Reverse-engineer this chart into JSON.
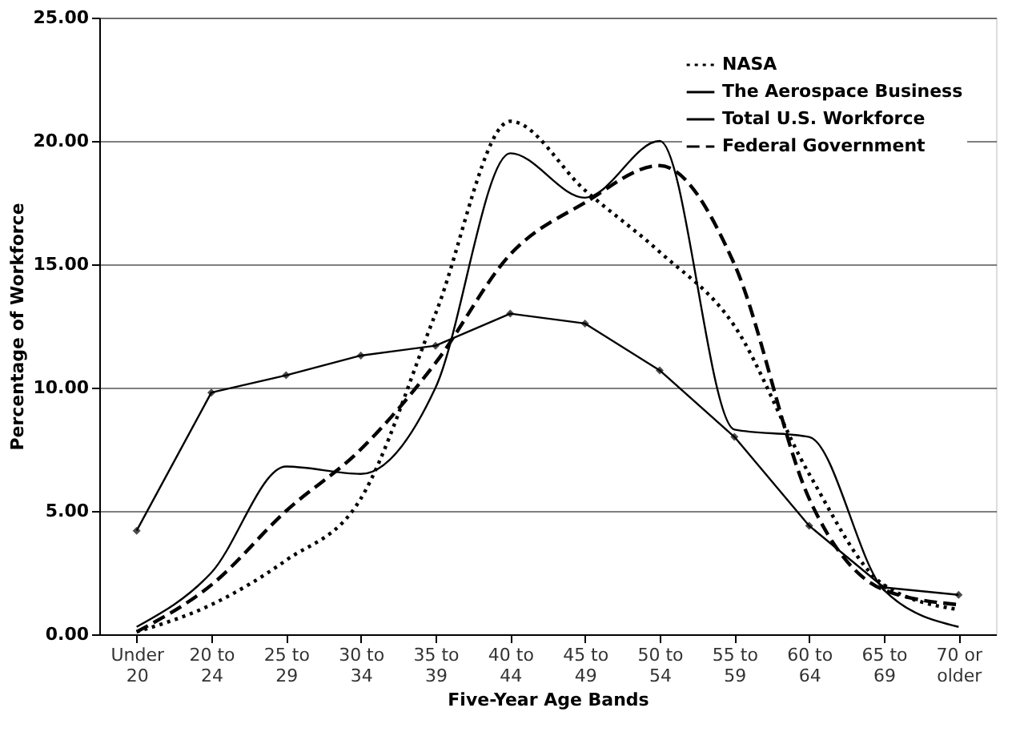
{
  "chart_data": {
    "type": "line",
    "xlabel": "Five-Year Age Bands",
    "ylabel": "Percentage of Workforce",
    "categories": [
      "Under 20",
      "20 to 24",
      "25 to 29",
      "30 to 34",
      "35 to 39",
      "40 to 44",
      "45 to 49",
      "50 to 54",
      "55 to 59",
      "60 to 64",
      "65 to 69",
      "70 or older"
    ],
    "ylim": [
      0,
      25
    ],
    "yticks": [
      {
        "value": 0,
        "label": "0.00"
      },
      {
        "value": 5,
        "label": "5.00"
      },
      {
        "value": 10,
        "label": "10.00"
      },
      {
        "value": 15,
        "label": "15.00"
      },
      {
        "value": 20,
        "label": "20.00"
      },
      {
        "value": 25,
        "label": "25.00"
      }
    ],
    "grid": "y",
    "legend": "top right",
    "series": [
      {
        "name": "NASA",
        "color": "#000000",
        "line_style": "dotted",
        "values": [
          0.1,
          1.2,
          3.0,
          5.5,
          13.0,
          20.8,
          18.0,
          15.5,
          12.5,
          6.5,
          2.0,
          1.0
        ]
      },
      {
        "name": "The Aerospace Business",
        "color": "#000000",
        "line_style": "solid",
        "values": [
          0.3,
          2.5,
          6.8,
          6.5,
          10.0,
          19.5,
          17.7,
          20.0,
          8.3,
          8.0,
          1.8,
          0.3
        ]
      },
      {
        "name": "Total U.S. Workforce",
        "color": "#000000",
        "line_style": "solid",
        "marker": "diamond",
        "values": [
          4.2,
          9.8,
          10.5,
          11.3,
          11.7,
          13.0,
          12.6,
          10.7,
          8.0,
          4.4,
          1.9,
          1.6
        ]
      },
      {
        "name": "Federal Government",
        "color": "#000000",
        "line_style": "dashed",
        "values": [
          0.1,
          2.0,
          5.0,
          7.5,
          11.0,
          15.4,
          17.5,
          19.0,
          15.0,
          5.5,
          1.8,
          1.2
        ]
      }
    ]
  }
}
